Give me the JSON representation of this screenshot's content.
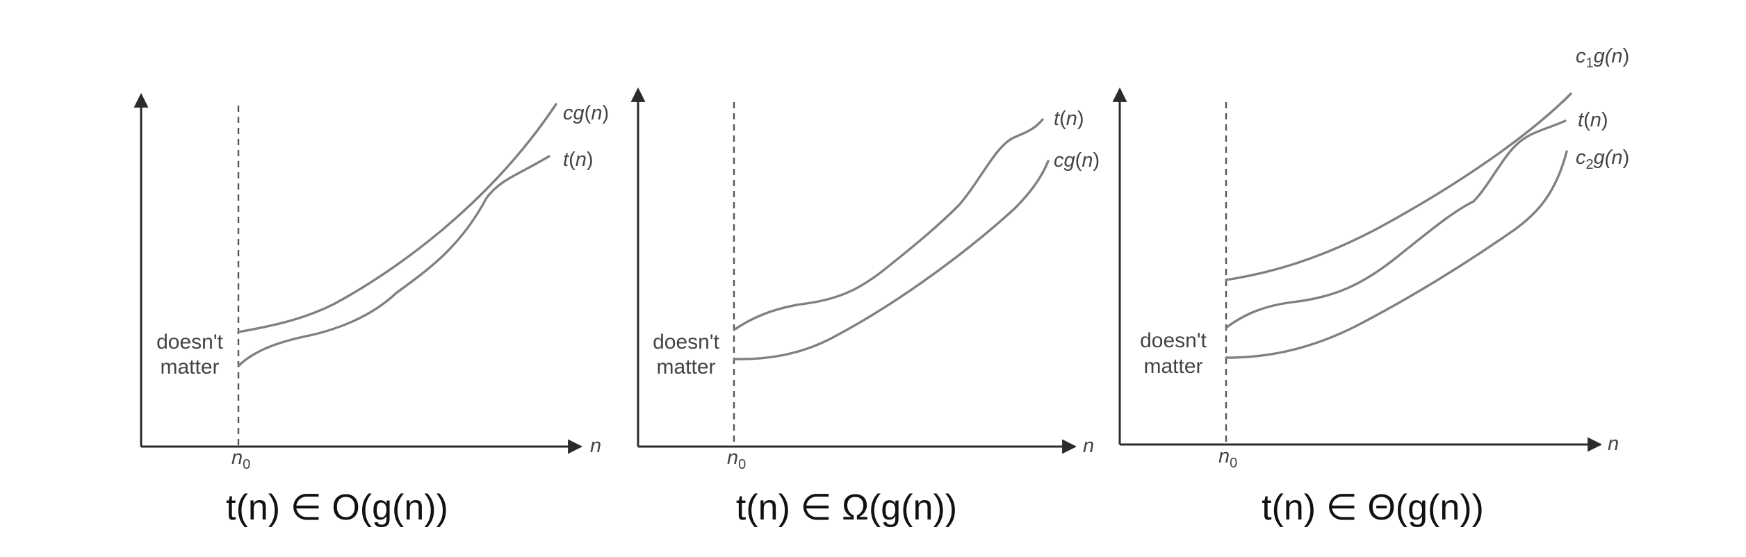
{
  "panels": [
    {
      "caption": "t(n) ∈ O(g(n))",
      "upper_curve": {
        "base": "cg",
        "arg": "(",
        "var": "n",
        "close": ")"
      },
      "lower_curve": {
        "base": "t",
        "arg": "(",
        "var": "n",
        "close": ")"
      },
      "note_line1": "doesn't",
      "note_line2": "matter",
      "threshold": {
        "base": "n",
        "sub": "0"
      },
      "x_axis": "n"
    },
    {
      "caption": "t(n) ∈ Ω(g(n))",
      "upper_curve": {
        "base": "t",
        "arg": "(",
        "var": "n",
        "close": ")"
      },
      "lower_curve": {
        "base": "cg",
        "arg": "(",
        "var": "n",
        "close": ")"
      },
      "note_line1": "doesn't",
      "note_line2": "matter",
      "threshold": {
        "base": "n",
        "sub": "0"
      },
      "x_axis": "n"
    },
    {
      "caption": "t(n) ∈ Θ(g(n))",
      "top_curve": {
        "base": "c",
        "sub": "1",
        "rest": "g(",
        "var": "n",
        "close": ")"
      },
      "mid_curve": {
        "base": "t",
        "arg": "(",
        "var": "n",
        "close": ")"
      },
      "bottom_curve": {
        "base": "c",
        "sub": "2",
        "rest": "g(",
        "var": "n",
        "close": ")"
      },
      "note_line1": "doesn't",
      "note_line2": "matter",
      "threshold": {
        "base": "n",
        "sub": "0"
      },
      "x_axis": "n"
    }
  ]
}
